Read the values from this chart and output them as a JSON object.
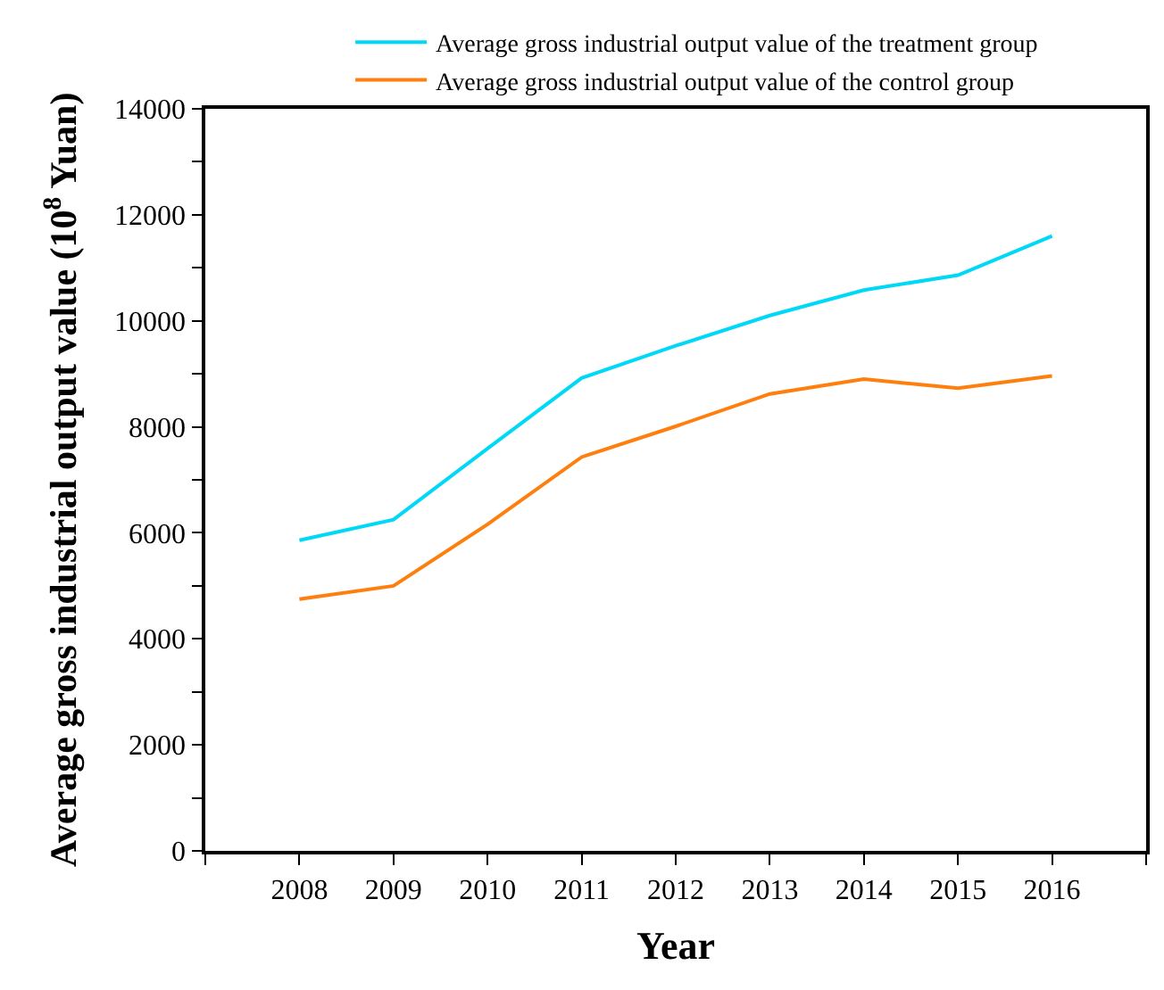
{
  "chart_data": {
    "type": "line",
    "xlabel": "Year",
    "ylabel": "Average gross industrial output value (10$^{8}$ Yuan)",
    "x": [
      2008,
      2009,
      2010,
      2011,
      2012,
      2013,
      2014,
      2015,
      2016
    ],
    "series": [
      {
        "name": "Average gross industrial output value of the treatment group",
        "color": "#00d8f8",
        "values": [
          5860,
          6250,
          7590,
          8920,
          9530,
          10100,
          10580,
          10860,
          11600
        ]
      },
      {
        "name": "Average gross industrial output value of the control group",
        "color": "#ff7f0e",
        "values": [
          4750,
          5000,
          6160,
          7430,
          8010,
          8620,
          8900,
          8730,
          8960
        ]
      }
    ],
    "xlim": [
      2007,
      2017
    ],
    "xticks": [
      {
        "value": 2007,
        "label": null
      },
      2008,
      2009,
      2010,
      2011,
      2012,
      2013,
      2014,
      2015,
      2016,
      {
        "value": 2017,
        "label": null
      }
    ],
    "ylim": [
      0,
      14000
    ],
    "yticks": [
      0,
      {
        "value": 1000,
        "label": null
      },
      2000,
      {
        "value": 3000,
        "label": null
      },
      4000,
      {
        "value": 5000,
        "label": null
      },
      6000,
      {
        "value": 7000,
        "label": null
      },
      8000,
      {
        "value": 9000,
        "label": null
      },
      10000,
      {
        "value": 11000,
        "label": null
      },
      12000,
      {
        "value": 13000,
        "label": null
      },
      14000
    ],
    "legend": "top",
    "marker": "none",
    "line_style": "solid"
  }
}
